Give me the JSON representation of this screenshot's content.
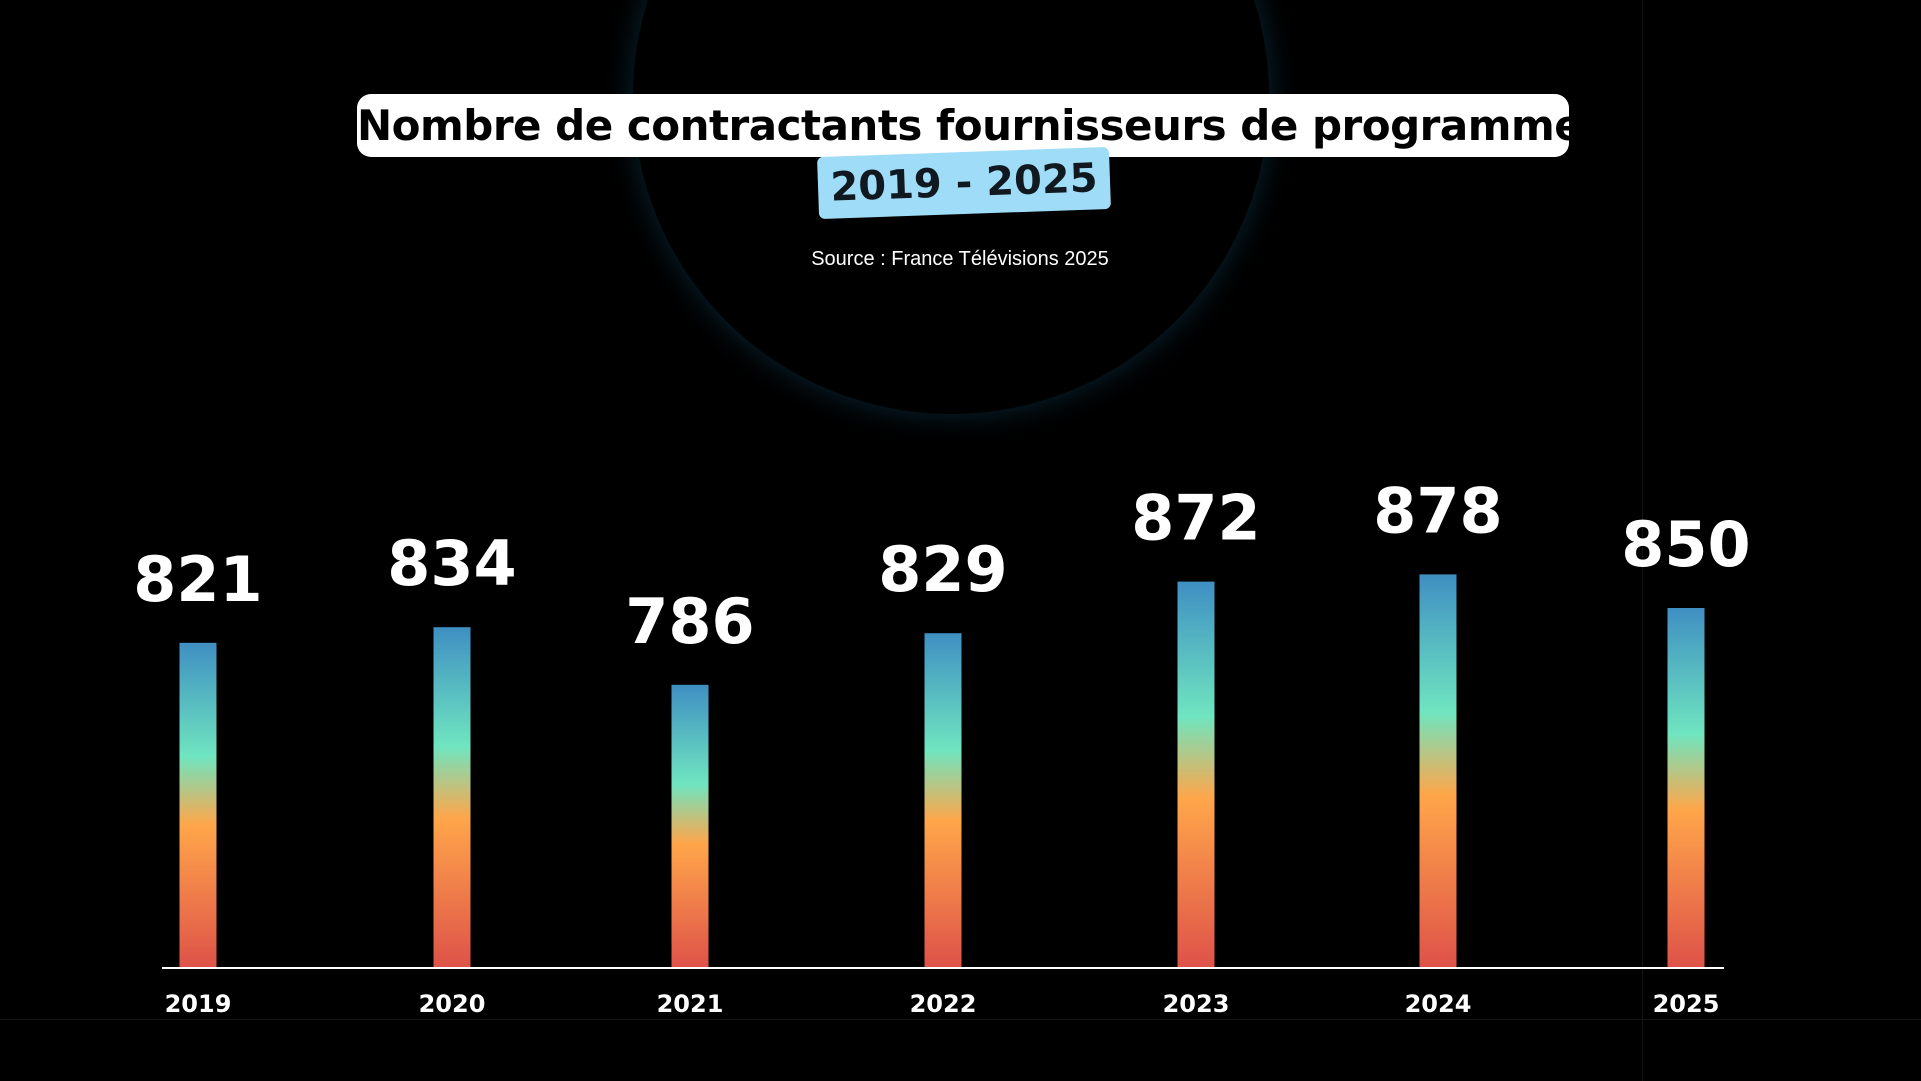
{
  "chart_data": {
    "type": "bar",
    "title": "Nombre de contractants fournisseurs de programmes",
    "subtitle": "2019 - 2025",
    "source": "Source : France Télévisions 2025",
    "categories": [
      "2019",
      "2020",
      "2021",
      "2022",
      "2023",
      "2024",
      "2025"
    ],
    "values": [
      821,
      834,
      786,
      829,
      872,
      878,
      850
    ],
    "value_labels": [
      "821",
      "834",
      "786",
      "829",
      "872",
      "878",
      "850"
    ],
    "xlabel": "",
    "ylabel": "",
    "ylim": [
      550,
      900
    ],
    "grid": false,
    "legend": "none",
    "colors": {
      "background": "#000000",
      "bar_top": "#3f8fc2",
      "bar_upper_mid": "#6fe5c0",
      "bar_mid": "#ffa64a",
      "bar_bottom": "#de5249",
      "title_box": "#ffffff",
      "subtitle_box": "#9fdcf7",
      "glow": "#2c7a9e"
    }
  }
}
